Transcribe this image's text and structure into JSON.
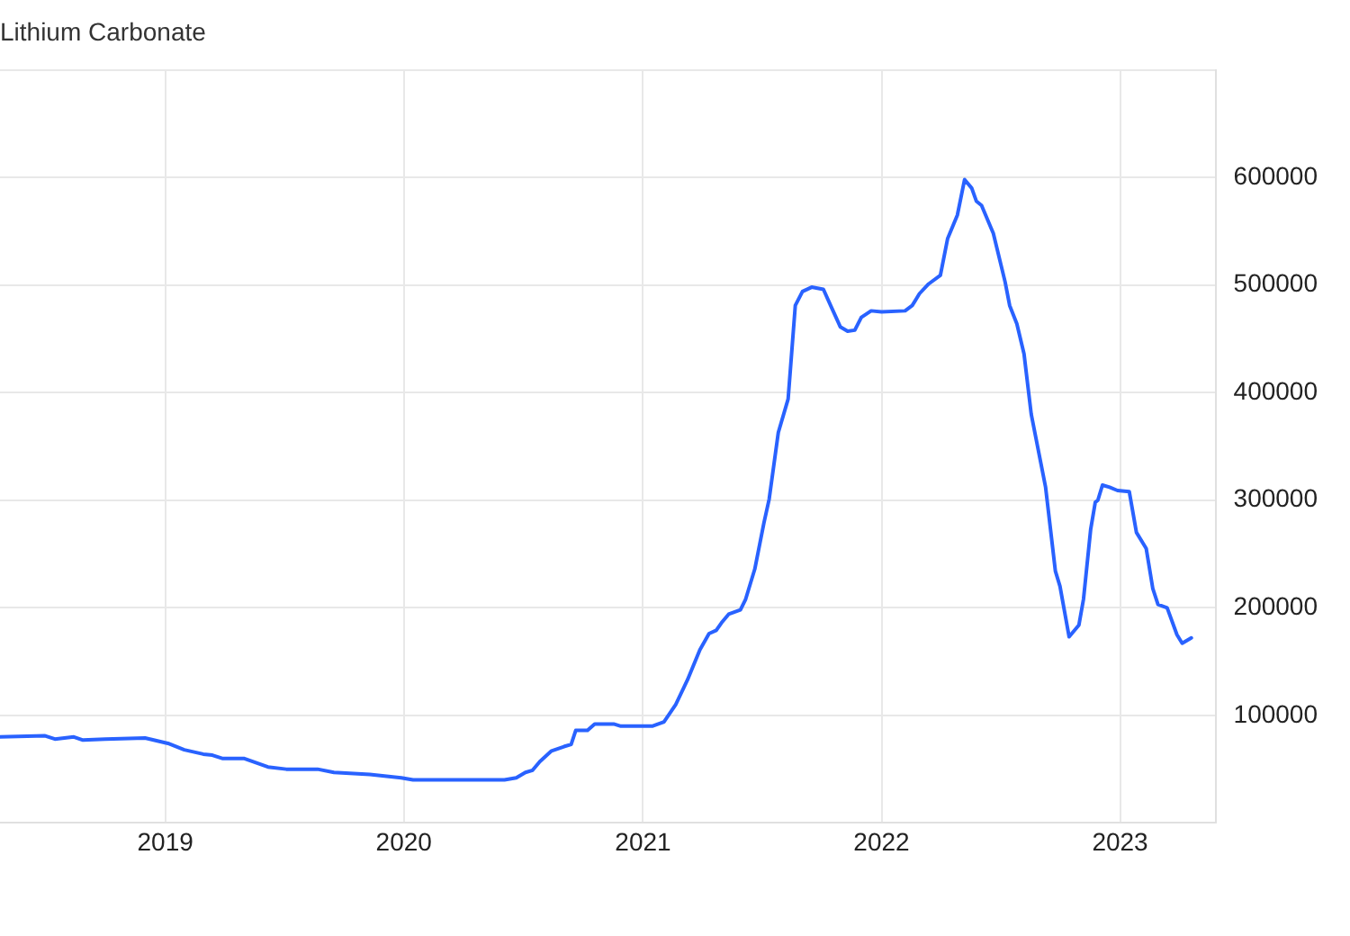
{
  "chart_data": {
    "type": "line",
    "title": "Lithium Carbonate",
    "x": [
      "2018-04-23",
      "2018-07-01",
      "2018-07-16",
      "2018-08-14",
      "2018-08-28",
      "2018-10-01",
      "2018-12-01",
      "2019-01-05",
      "2019-01-30",
      "2019-02-28",
      "2019-03-14",
      "2019-03-29",
      "2019-05-01",
      "2019-06-07",
      "2019-07-05",
      "2019-08-22",
      "2019-09-16",
      "2019-11-10",
      "2019-12-28",
      "2020-01-15",
      "2020-06-03",
      "2020-06-21",
      "2020-07-05",
      "2020-07-16",
      "2020-07-27",
      "2020-08-14",
      "2020-09-02",
      "2020-09-13",
      "2020-09-20",
      "2020-10-08",
      "2020-10-19",
      "2020-11-17",
      "2020-11-28",
      "2020-12-05",
      "2021-01-15",
      "2021-02-02",
      "2021-02-20",
      "2021-03-10",
      "2021-03-29",
      "2021-04-12",
      "2021-04-23",
      "2021-05-01",
      "2021-05-12",
      "2021-05-30",
      "2021-06-07",
      "2021-06-21",
      "2021-07-05",
      "2021-07-13",
      "2021-07-27",
      "2021-08-11",
      "2021-08-22",
      "2021-09-02",
      "2021-09-16",
      "2021-10-04",
      "2021-10-15",
      "2021-10-30",
      "2021-11-10",
      "2021-11-21",
      "2021-12-01",
      "2021-12-16",
      "2022-01-01",
      "2022-02-06",
      "2022-02-17",
      "2022-02-28",
      "2022-03-14",
      "2022-04-01",
      "2022-04-12",
      "2022-04-27",
      "2022-05-08",
      "2022-05-19",
      "2022-05-26",
      "2022-06-03",
      "2022-06-21",
      "2022-07-09",
      "2022-07-16",
      "2022-07-27",
      "2022-08-07",
      "2022-08-18",
      "2022-09-09",
      "2022-09-24",
      "2022-10-01",
      "2022-10-15",
      "2022-10-30",
      "2022-11-06",
      "2022-11-17",
      "2022-11-24",
      "2022-11-28",
      "2022-12-05",
      "2022-12-16",
      "2022-12-28",
      "2023-01-15",
      "2023-01-26",
      "2023-02-10",
      "2023-02-20",
      "2023-02-28",
      "2023-03-14",
      "2023-03-29",
      "2023-04-06",
      "2023-04-20"
    ],
    "series": [
      {
        "color": "#2962ff",
        "values": [
          80000,
          81000,
          78000,
          80000,
          77000,
          78000,
          79000,
          74000,
          68000,
          64000,
          63000,
          60000,
          60000,
          52000,
          50000,
          50000,
          47000,
          45000,
          42000,
          40000,
          40000,
          42000,
          47000,
          49000,
          57000,
          67000,
          71000,
          73000,
          86000,
          86000,
          92000,
          92000,
          90000,
          90000,
          90000,
          94000,
          110000,
          133000,
          161000,
          176000,
          179000,
          186000,
          194000,
          198000,
          208000,
          236000,
          279000,
          301000,
          363000,
          394000,
          481000,
          494000,
          498000,
          496000,
          481000,
          461000,
          457000,
          458000,
          470000,
          476000,
          475000,
          476000,
          481000,
          492000,
          501000,
          509000,
          543000,
          565000,
          598000,
          590000,
          578000,
          574000,
          548000,
          503000,
          481000,
          464000,
          436000,
          380000,
          312000,
          234000,
          220000,
          173000,
          184000,
          208000,
          273000,
          298000,
          300000,
          314000,
          312000,
          309000,
          308000,
          270000,
          255000,
          218000,
          203000,
          200000,
          175000,
          167000,
          172000
        ]
      }
    ],
    "xlim": [
      "2018-04-23",
      "2023-05-27"
    ],
    "xticks": [
      {
        "value": "2019-01-01",
        "label": "2019"
      },
      {
        "value": "2020-01-01",
        "label": "2020"
      },
      {
        "value": "2021-01-01",
        "label": "2021"
      },
      {
        "value": "2022-01-01",
        "label": "2022"
      },
      {
        "value": "2023-01-01",
        "label": "2023"
      }
    ],
    "ylim": [
      0,
      700000
    ],
    "yticks": [
      {
        "value": 0,
        "label": null
      },
      100000,
      200000,
      300000,
      400000,
      500000,
      600000,
      {
        "value": 700000,
        "label": null
      }
    ],
    "grid": true,
    "legend": false,
    "marker": "none",
    "line_style": "solid"
  }
}
